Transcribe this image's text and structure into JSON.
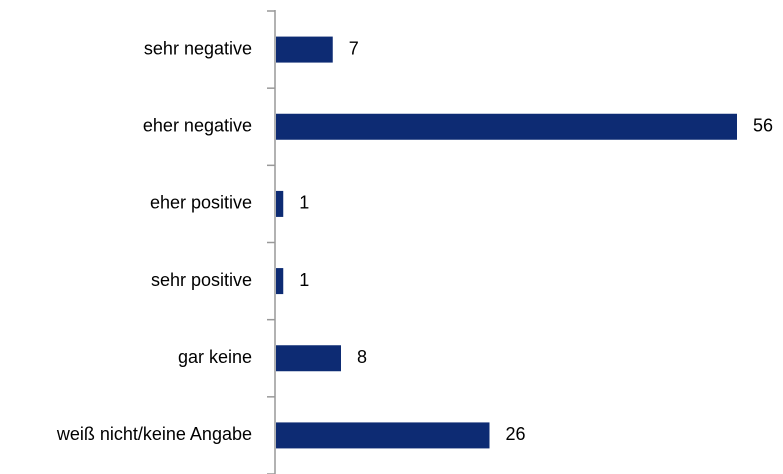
{
  "chart_data": {
    "type": "bar",
    "orientation": "horizontal",
    "categories": [
      "sehr negative",
      "eher negative",
      "eher positive",
      "sehr positive",
      "gar keine",
      "weiß nicht/keine Angabe"
    ],
    "values": [
      7,
      56,
      1,
      1,
      8,
      26
    ],
    "color": "#0d2b73"
  }
}
